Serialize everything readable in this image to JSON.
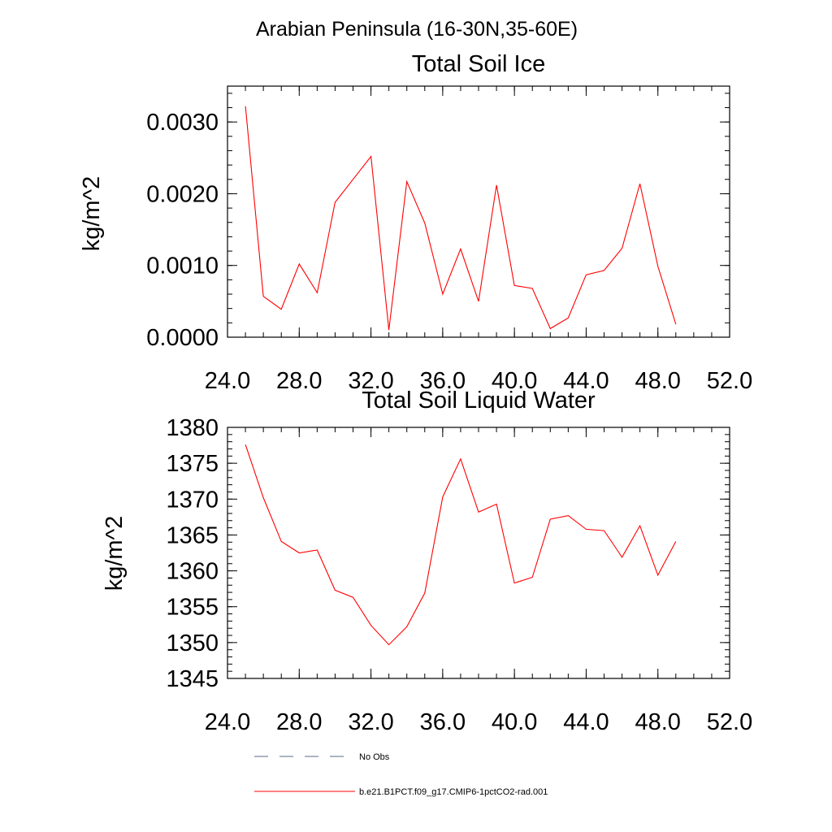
{
  "figure": {
    "title": "Arabian Peninsula (16-30N,35-60E)"
  },
  "chart_data": [
    {
      "type": "line",
      "title": "Total Soil Ice",
      "xlabel": "",
      "ylabel": "kg/m^2",
      "xlim": [
        24,
        52
      ],
      "ylim": [
        0,
        0.0035
      ],
      "xticks": [
        24,
        28,
        32,
        36,
        40,
        44,
        48,
        52
      ],
      "xtick_labels": [
        "24.0",
        "28.0",
        "32.0",
        "36.0",
        "40.0",
        "44.0",
        "48.0",
        "52.0"
      ],
      "yticks": [
        0,
        0.001,
        0.002,
        0.003
      ],
      "ytick_labels": [
        "0.0000",
        "0.0010",
        "0.0020",
        "0.0030"
      ],
      "grid": false,
      "series": [
        {
          "name": "b.e21.B1PCT.f09_g17.CMIP6-1pctCO2-rad.001",
          "color": "#ff0000",
          "x": [
            25,
            26,
            27,
            28,
            29,
            30,
            31,
            32,
            33,
            34,
            35,
            36,
            37,
            38,
            39,
            40,
            41,
            42,
            43,
            44,
            45,
            46,
            47,
            48,
            49
          ],
          "y": [
            0.00322,
            0.00057,
            0.00039,
            0.00102,
            0.00062,
            0.00188,
            0.0022,
            0.00252,
            0.0001,
            0.00217,
            0.00159,
            0.0006,
            0.00123,
            0.0005,
            0.00212,
            0.00072,
            0.00068,
            0.00012,
            0.00027,
            0.00087,
            0.00093,
            0.00124,
            0.00214,
            0.00099,
            0.00018
          ]
        }
      ]
    },
    {
      "type": "line",
      "title": "Total Soil Liquid Water",
      "xlabel": "",
      "ylabel": "kg/m^2",
      "xlim": [
        24,
        52
      ],
      "ylim": [
        1345,
        1380
      ],
      "xticks": [
        24,
        28,
        32,
        36,
        40,
        44,
        48,
        52
      ],
      "xtick_labels": [
        "24.0",
        "28.0",
        "32.0",
        "36.0",
        "40.0",
        "44.0",
        "48.0",
        "52.0"
      ],
      "yticks": [
        1345,
        1350,
        1355,
        1360,
        1365,
        1370,
        1375,
        1380
      ],
      "ytick_labels": [
        "1345",
        "1350",
        "1355",
        "1360",
        "1365",
        "1370",
        "1375",
        "1380"
      ],
      "grid": false,
      "series": [
        {
          "name": "b.e21.B1PCT.f09_g17.CMIP6-1pctCO2-rad.001",
          "color": "#ff0000",
          "x": [
            25,
            26,
            27,
            28,
            29,
            30,
            31,
            32,
            33,
            34,
            35,
            36,
            37,
            38,
            39,
            40,
            41,
            42,
            43,
            44,
            45,
            46,
            47,
            48,
            49
          ],
          "y": [
            1377.6,
            1370.2,
            1364.1,
            1362.5,
            1362.9,
            1357.3,
            1356.3,
            1352.4,
            1349.7,
            1352.2,
            1356.9,
            1370.3,
            1375.6,
            1368.2,
            1369.3,
            1358.3,
            1359.1,
            1367.2,
            1367.7,
            1365.8,
            1365.6,
            1361.9,
            1366.3,
            1359.4,
            1364.1
          ]
        }
      ]
    }
  ],
  "legend": {
    "placement": "bottom",
    "items": [
      {
        "label": "No Obs",
        "color": "#5a6a8a",
        "style": "dashed"
      },
      {
        "label": "b.e21.B1PCT.f09_g17.CMIP6-1pctCO2-rad.001",
        "color": "#ff0000",
        "style": "solid"
      }
    ]
  }
}
